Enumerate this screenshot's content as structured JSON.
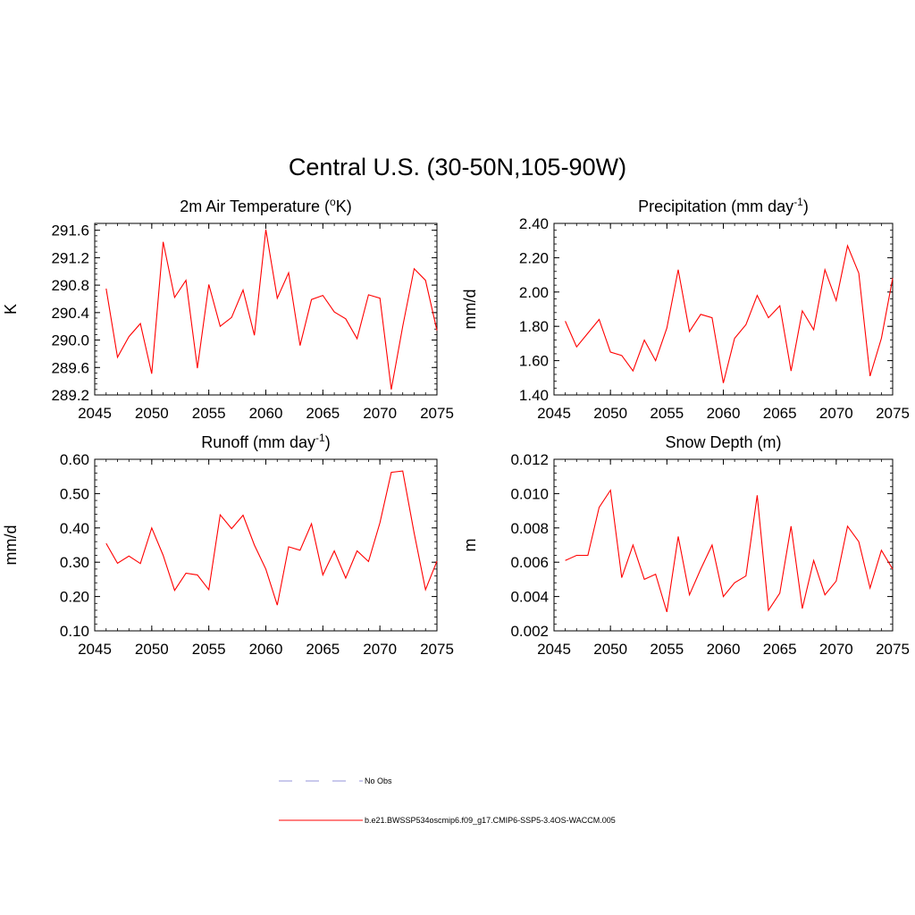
{
  "figure_title": "Central U.S. (30-50N,105-90W)",
  "legend": {
    "entries": [
      {
        "label": "No Obs",
        "style": "dashed",
        "color": "#a9a9e0"
      },
      {
        "label": "b.e21.BWSSP534oscmip6.f09_g17.CMIP6-SSP5-3.4OS-WACCM.005",
        "style": "solid",
        "color": "#ff0000"
      }
    ]
  },
  "chart_data": [
    {
      "type": "line",
      "id": "temperature",
      "title": "2m Air Temperature (",
      "title_sup": "o",
      "title_tail": "K)",
      "ylabel": "K",
      "xlabel": "",
      "xlim": [
        2045,
        2075
      ],
      "ylim": [
        289.2,
        291.7
      ],
      "xticks": [
        2045,
        2050,
        2055,
        2060,
        2065,
        2070,
        2075
      ],
      "xtick_labels": [
        "2045",
        "2050",
        "2055",
        "2060",
        "2065",
        "2070",
        "2075"
      ],
      "yticks": [
        289.2,
        289.6,
        290.0,
        290.4,
        290.8,
        291.2,
        291.6
      ],
      "ytick_labels": [
        "289.2",
        "289.6",
        "290.0",
        "290.4",
        "290.8",
        "291.2",
        "291.6"
      ],
      "yminor_step": 0.08,
      "series": [
        {
          "name": "b.e21.BWSSP534oscmip6.f09_g17.CMIP6-SSP5-3.4OS-WACCM.005",
          "color": "#ff0000",
          "x": [
            2046,
            2047,
            2048,
            2049,
            2050,
            2051,
            2052,
            2053,
            2054,
            2055,
            2056,
            2057,
            2058,
            2059,
            2060,
            2061,
            2062,
            2063,
            2064,
            2065,
            2066,
            2067,
            2068,
            2069,
            2070,
            2071,
            2072,
            2073,
            2074,
            2075
          ],
          "values": [
            290.75,
            289.75,
            290.05,
            290.24,
            289.51,
            291.43,
            290.62,
            290.87,
            289.59,
            290.81,
            290.2,
            290.33,
            290.73,
            290.07,
            291.61,
            290.61,
            290.98,
            289.92,
            290.59,
            290.65,
            290.41,
            290.31,
            290.02,
            290.66,
            290.61,
            289.28,
            290.2,
            291.04,
            290.87,
            290.14
          ]
        }
      ]
    },
    {
      "type": "line",
      "id": "precipitation",
      "title": "Precipitation (mm day",
      "title_sup": "-1",
      "title_tail": ")",
      "ylabel": "mm/d",
      "xlabel": "",
      "xlim": [
        2045,
        2075
      ],
      "ylim": [
        1.4,
        2.4
      ],
      "xticks": [
        2045,
        2050,
        2055,
        2060,
        2065,
        2070,
        2075
      ],
      "xtick_labels": [
        "2045",
        "2050",
        "2055",
        "2060",
        "2065",
        "2070",
        "2075"
      ],
      "yticks": [
        1.4,
        1.6,
        1.8,
        2.0,
        2.2,
        2.4
      ],
      "ytick_labels": [
        "1.40",
        "1.60",
        "1.80",
        "2.00",
        "2.20",
        "2.40"
      ],
      "yminor_step": 0.04,
      "series": [
        {
          "name": "b.e21.BWSSP534oscmip6.f09_g17.CMIP6-SSP5-3.4OS-WACCM.005",
          "color": "#ff0000",
          "x": [
            2046,
            2047,
            2048,
            2049,
            2050,
            2051,
            2052,
            2053,
            2054,
            2055,
            2056,
            2057,
            2058,
            2059,
            2060,
            2061,
            2062,
            2063,
            2064,
            2065,
            2066,
            2067,
            2068,
            2069,
            2070,
            2071,
            2072,
            2073,
            2074,
            2075
          ],
          "values": [
            1.83,
            1.68,
            1.76,
            1.84,
            1.65,
            1.63,
            1.54,
            1.72,
            1.6,
            1.79,
            2.13,
            1.77,
            1.87,
            1.85,
            1.47,
            1.73,
            1.81,
            1.98,
            1.85,
            1.92,
            1.54,
            1.89,
            1.78,
            2.13,
            1.95,
            2.27,
            2.11,
            1.51,
            1.73,
            2.08
          ]
        }
      ]
    },
    {
      "type": "line",
      "id": "runoff",
      "title": "Runoff (mm day",
      "title_sup": "-1",
      "title_tail": ")",
      "ylabel": "mm/d",
      "xlabel": "",
      "xlim": [
        2045,
        2075
      ],
      "ylim": [
        0.1,
        0.6
      ],
      "xticks": [
        2045,
        2050,
        2055,
        2060,
        2065,
        2070,
        2075
      ],
      "xtick_labels": [
        "2045",
        "2050",
        "2055",
        "2060",
        "2065",
        "2070",
        "2075"
      ],
      "yticks": [
        0.1,
        0.2,
        0.3,
        0.4,
        0.5,
        0.6
      ],
      "ytick_labels": [
        "0.10",
        "0.20",
        "0.30",
        "0.40",
        "0.50",
        "0.60"
      ],
      "yminor_step": 0.02,
      "series": [
        {
          "name": "b.e21.BWSSP534oscmip6.f09_g17.CMIP6-SSP5-3.4OS-WACCM.005",
          "color": "#ff0000",
          "x": [
            2046,
            2047,
            2048,
            2049,
            2050,
            2051,
            2052,
            2053,
            2054,
            2055,
            2056,
            2057,
            2058,
            2059,
            2060,
            2061,
            2062,
            2063,
            2064,
            2065,
            2066,
            2067,
            2068,
            2069,
            2070,
            2071,
            2072,
            2073,
            2074,
            2075
          ],
          "values": [
            0.355,
            0.297,
            0.318,
            0.296,
            0.4,
            0.32,
            0.218,
            0.268,
            0.263,
            0.22,
            0.438,
            0.398,
            0.437,
            0.35,
            0.28,
            0.175,
            0.345,
            0.335,
            0.412,
            0.263,
            0.333,
            0.254,
            0.333,
            0.302,
            0.415,
            0.562,
            0.566,
            0.385,
            0.22,
            0.303
          ]
        }
      ]
    },
    {
      "type": "line",
      "id": "snow_depth",
      "title": "Snow Depth (m)",
      "title_sup": "",
      "title_tail": "",
      "ylabel": "m",
      "xlabel": "",
      "xlim": [
        2045,
        2075
      ],
      "ylim": [
        0.002,
        0.012
      ],
      "xticks": [
        2045,
        2050,
        2055,
        2060,
        2065,
        2070,
        2075
      ],
      "xtick_labels": [
        "2045",
        "2050",
        "2055",
        "2060",
        "2065",
        "2070",
        "2075"
      ],
      "yticks": [
        0.002,
        0.004,
        0.006,
        0.008,
        0.01,
        0.012
      ],
      "ytick_labels": [
        "0.002",
        "0.004",
        "0.006",
        "0.008",
        "0.010",
        "0.012"
      ],
      "yminor_step": 0.0004,
      "series": [
        {
          "name": "b.e21.BWSSP534oscmip6.f09_g17.CMIP6-SSP5-3.4OS-WACCM.005",
          "color": "#ff0000",
          "x": [
            2046,
            2047,
            2048,
            2049,
            2050,
            2051,
            2052,
            2053,
            2054,
            2055,
            2056,
            2057,
            2058,
            2059,
            2060,
            2061,
            2062,
            2063,
            2064,
            2065,
            2066,
            2067,
            2068,
            2069,
            2070,
            2071,
            2072,
            2073,
            2074,
            2075
          ],
          "values": [
            0.0061,
            0.0064,
            0.0064,
            0.0092,
            0.0102,
            0.0051,
            0.007,
            0.005,
            0.0053,
            0.0031,
            0.0075,
            0.0041,
            0.0056,
            0.007,
            0.004,
            0.0048,
            0.0052,
            0.0099,
            0.0032,
            0.0042,
            0.0081,
            0.0033,
            0.0061,
            0.0041,
            0.0049,
            0.0081,
            0.0072,
            0.0045,
            0.0067,
            0.0056
          ]
        }
      ]
    }
  ]
}
